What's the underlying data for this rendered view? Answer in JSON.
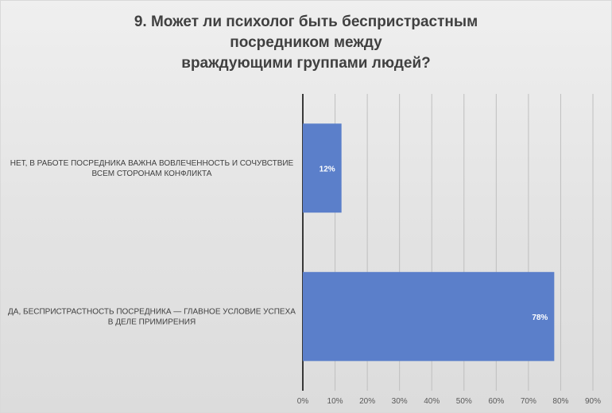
{
  "chart_data": {
    "type": "bar",
    "orientation": "horizontal",
    "title_lines": [
      "9. Может ли психолог быть беспристрастным",
      "посредником между",
      "враждующими группами людей?"
    ],
    "categories": [
      [
        "НЕТ, В РАБОТЕ ПОСРЕДНИКА ВАЖНА ВОВЛЕЧЕННОСТЬ И СОЧУВСТВИЕ",
        "ВСЕМ СТОРОНАМ КОНФЛИКТА"
      ],
      [
        "ДА, БЕСПРИСТРАСТНОСТЬ  ПОСРЕДНИКА — ГЛАВНОЕ УСЛОВИЕ УСПЕХА",
        "В ДЕЛЕ ПРИМИРЕНИЯ"
      ]
    ],
    "values": [
      12,
      78
    ],
    "data_labels": [
      "12%",
      "78%"
    ],
    "xlim": [
      0,
      90
    ],
    "x_ticks": [
      0,
      10,
      20,
      30,
      40,
      50,
      60,
      70,
      80,
      90
    ],
    "x_tick_labels": [
      "0%",
      "10%",
      "20%",
      "30%",
      "40%",
      "50%",
      "60%",
      "70%",
      "80%",
      "90%"
    ],
    "grid": true,
    "legend": "none",
    "bar_color": "#5b7fca"
  }
}
